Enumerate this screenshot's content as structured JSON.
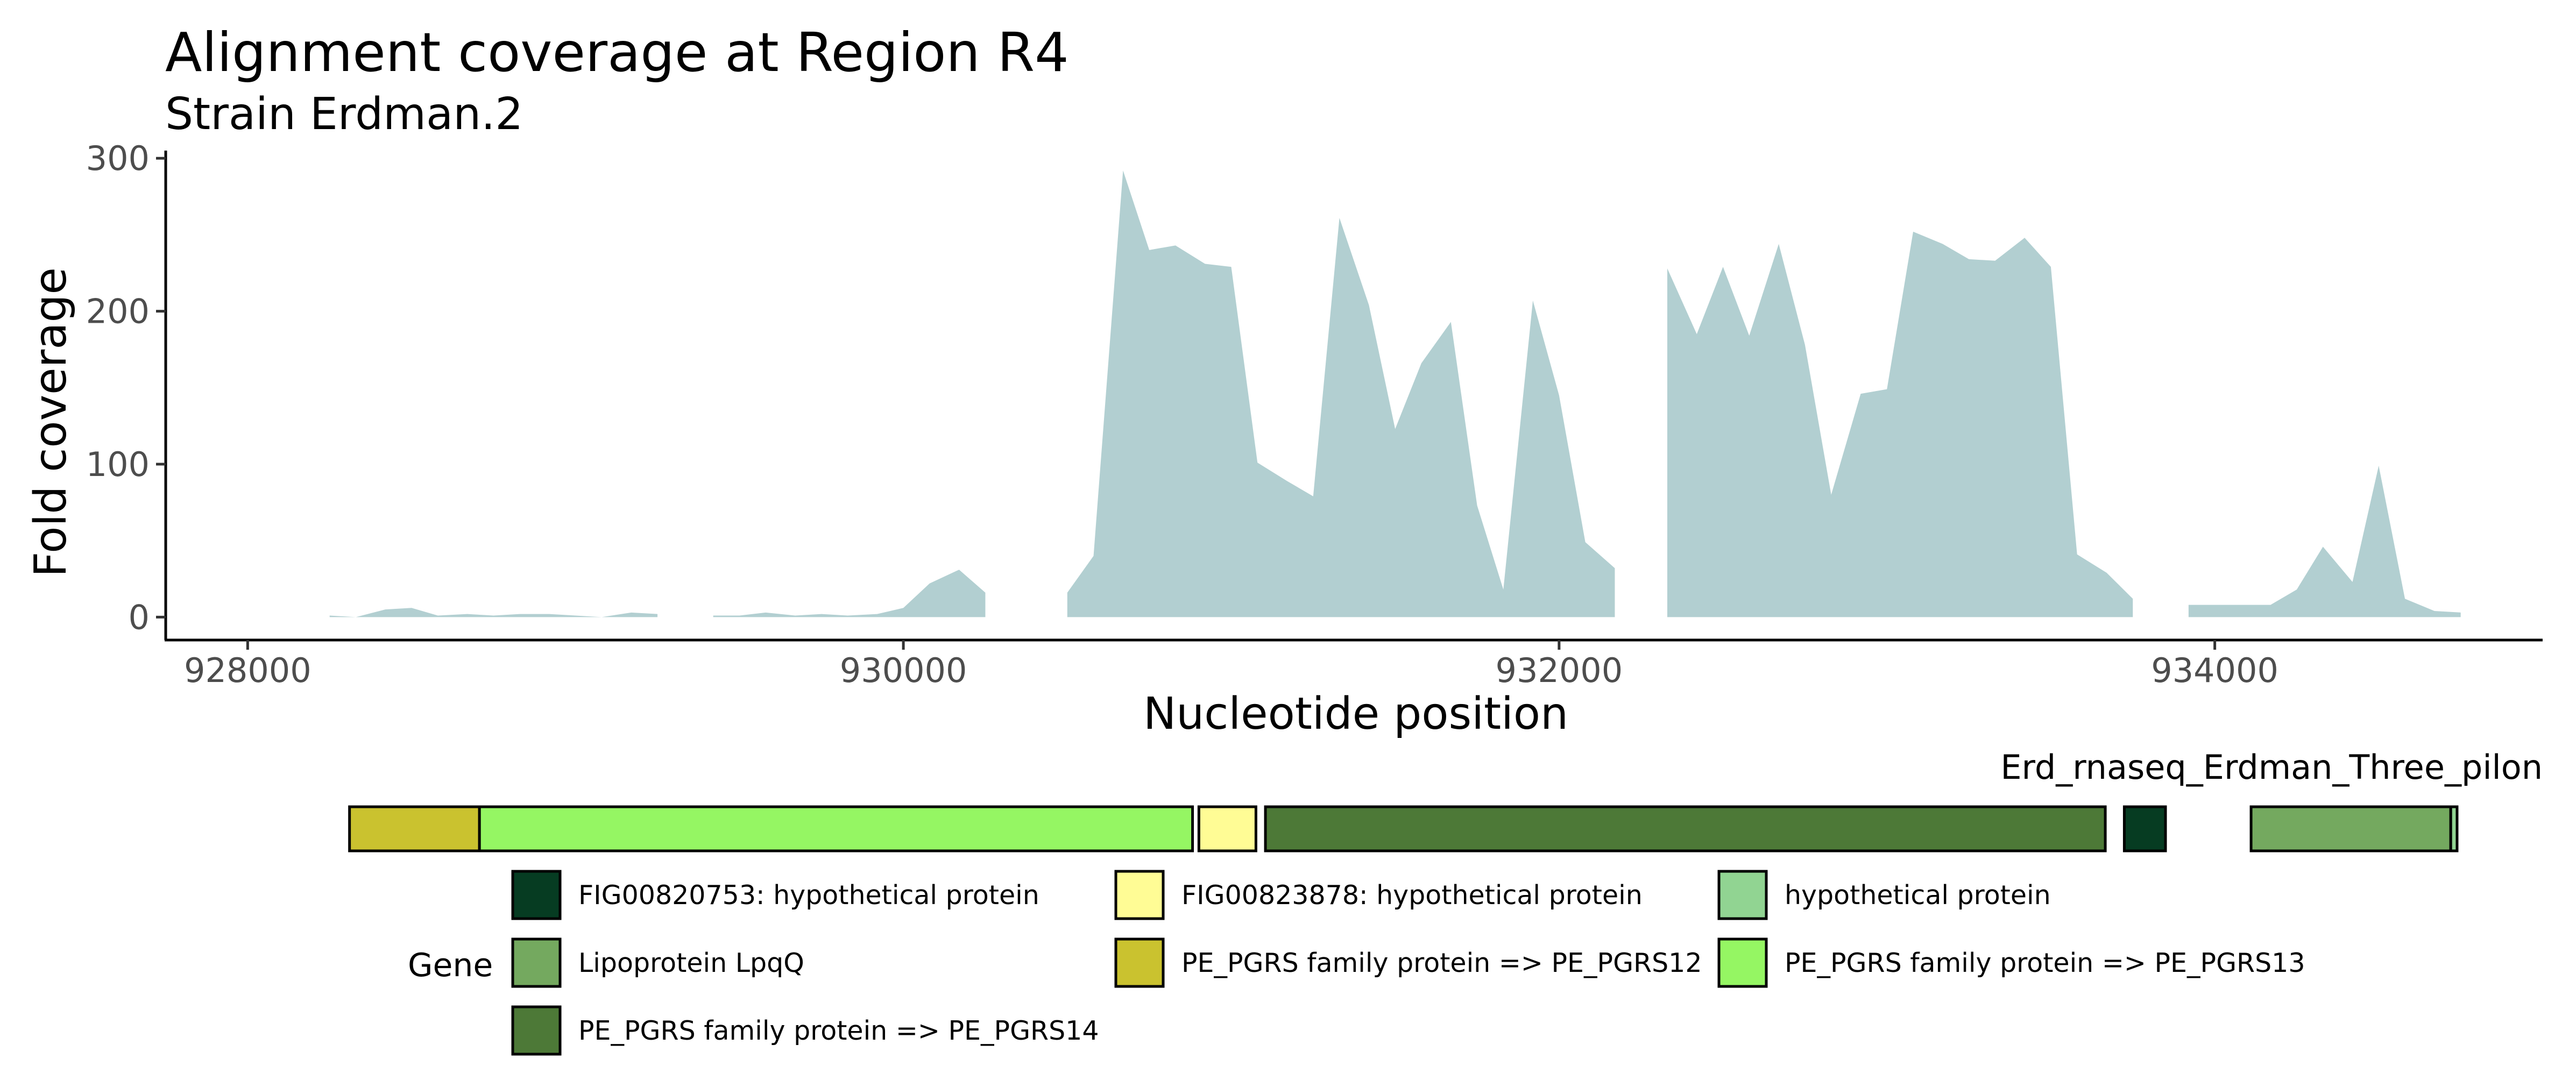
{
  "chart_data": {
    "type": "area",
    "title": "Alignment coverage at Region R4",
    "subtitle": "Strain Erdman.2",
    "xlabel": "Nucleotide position",
    "ylabel": "Fold coverage",
    "xlim": [
      927750,
      935000
    ],
    "ylim": [
      -15,
      305
    ],
    "xticks": [
      928000,
      930000,
      932000,
      934000
    ],
    "xtick_labels": [
      "928000",
      "930000",
      "932000",
      "934000"
    ],
    "yticks": [
      0,
      100,
      200,
      300
    ],
    "ytick_labels": [
      "0",
      "100",
      "200",
      "300"
    ],
    "grid": false,
    "fill_color": "#b2cfd1",
    "series": [
      {
        "segments": [
          {
            "x": [
              928250,
              928330,
              928420,
              928500,
              928580,
              928670,
              928750,
              928830,
              928920,
              929000,
              929080,
              929170,
              929250
            ],
            "y": [
              1,
              0,
              5,
              6,
              1,
              2,
              1,
              2,
              2,
              1,
              0,
              3,
              2
            ]
          },
          {
            "x": [
              929420,
              929500,
              929580,
              929670,
              929750,
              929830,
              929920,
              930000,
              930080,
              930170,
              930250
            ],
            "y": [
              1,
              1,
              3,
              1,
              2,
              1,
              2,
              6,
              22,
              31,
              16
            ]
          },
          {
            "x": [
              930500,
              930580,
              930670,
              930750,
              930830,
              930920,
              931000,
              931080,
              931170,
              931250,
              931330,
              931420,
              931500,
              931580,
              931670,
              931750,
              931830,
              931920,
              932000,
              932080,
              932170
            ],
            "y": [
              16,
              40,
              292,
              240,
              243,
              231,
              229,
              101,
              89,
              79,
              261,
              204,
              123,
              166,
              193,
              73,
              18,
              207,
              145,
              49,
              32
            ]
          },
          {
            "x": [
              932330,
              932420,
              932500,
              932580,
              932670,
              932750,
              932830,
              932920,
              933000,
              933080,
              933170,
              933250,
              933330,
              933420,
              933500,
              933580,
              933670,
              933750
            ],
            "y": [
              228,
              185,
              229,
              184,
              244,
              178,
              80,
              146,
              149,
              252,
              244,
              234,
              233,
              248,
              229,
              41,
              29,
              12
            ]
          },
          {
            "x": [
              933920,
              934000,
              934080,
              934170,
              934250,
              934330,
              934420,
              934500,
              934580,
              934670,
              934750
            ],
            "y": [
              8,
              8,
              8,
              8,
              18,
              46,
              23,
              99,
              12,
              4,
              3
            ]
          }
        ]
      }
    ]
  },
  "gene_track": {
    "label": "Erd_rnaseq_Erdman_Three_pilon",
    "xlim": [
      927500,
      935000
    ],
    "genes": [
      {
        "name": "PE_PGRS family protein => PE_PGRS12",
        "start": 928080,
        "end": 928490,
        "color": "#cac22f"
      },
      {
        "name": "PE_PGRS family protein => PE_PGRS13",
        "start": 928490,
        "end": 930740,
        "color": "#95f663"
      },
      {
        "name": "FIG00823878: hypothetical protein",
        "start": 930760,
        "end": 930940,
        "color": "#fffc95"
      },
      {
        "name": "PE_PGRS family protein => PE_PGRS14",
        "start": 930970,
        "end": 933620,
        "color": "#4d7937"
      },
      {
        "name": "FIG00820753: hypothetical protein",
        "start": 933680,
        "end": 933810,
        "color": "#063c22"
      },
      {
        "name": "Lipoprotein LpqQ",
        "start": 934080,
        "end": 934710,
        "color": "#74a95f"
      },
      {
        "name": "hypothetical protein",
        "start": 934710,
        "end": 934730,
        "color": "#91d492"
      }
    ]
  },
  "legend": {
    "title": "Gene",
    "items": [
      {
        "label": "FIG00820753: hypothetical protein",
        "color": "#063c22"
      },
      {
        "label": "FIG00823878: hypothetical protein",
        "color": "#fffc95"
      },
      {
        "label": "hypothetical protein",
        "color": "#91d492"
      },
      {
        "label": "Lipoprotein LpqQ",
        "color": "#74a95f"
      },
      {
        "label": "PE_PGRS family protein => PE_PGRS12",
        "color": "#cac22f"
      },
      {
        "label": "PE_PGRS family protein => PE_PGRS13",
        "color": "#95f663"
      },
      {
        "label": "PE_PGRS family protein => PE_PGRS14",
        "color": "#4d7937"
      }
    ]
  }
}
